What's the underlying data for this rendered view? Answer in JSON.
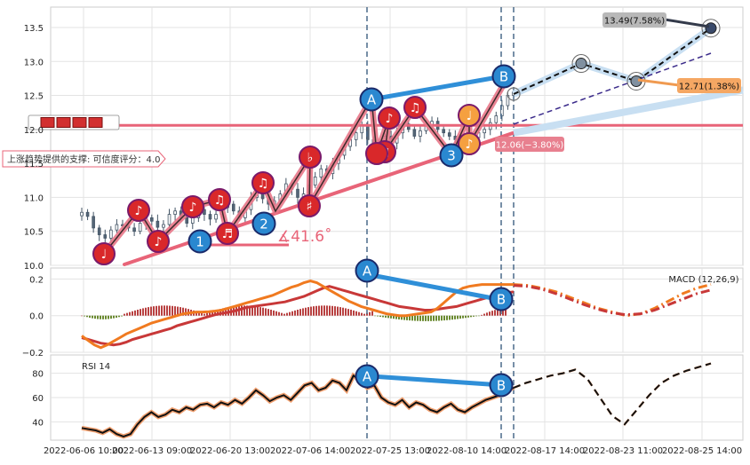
{
  "chart_data": [
    {
      "type": "candlestick",
      "panel": "price",
      "ylim": [
        10.0,
        13.8
      ],
      "yticks": [
        "10.0",
        "10.5",
        "11.0",
        "11.5",
        "12.0",
        "12.5",
        "13.0",
        "13.5"
      ],
      "xtick_labels": [
        "2022-06-06 10:00",
        "2022-06-13 09:00",
        "2022-06-20 13:00",
        "2022-07-06 14:00",
        "2022-07-25 13:00",
        "2022-08-10 14:00",
        "2022-08-17 14:00",
        "2022-08-23 11:00",
        "2022-08-25 14:00"
      ],
      "close_series": [
        10.78,
        10.72,
        10.55,
        10.45,
        10.4,
        10.52,
        10.6,
        10.58,
        10.55,
        10.5,
        10.62,
        10.7,
        10.65,
        10.56,
        10.6,
        10.75,
        10.8,
        10.7,
        10.62,
        10.7,
        10.82,
        10.75,
        10.68,
        10.75,
        10.85,
        10.9,
        10.8,
        10.7,
        10.82,
        11.0,
        11.08,
        10.98,
        10.9,
        10.95,
        11.05,
        11.2,
        11.12,
        11.0,
        11.05,
        11.18,
        11.3,
        11.42,
        11.35,
        11.5,
        11.62,
        11.75,
        11.85,
        11.95,
        12.05,
        11.85,
        11.65,
        11.75,
        11.9,
        11.8,
        11.95,
        12.08,
        12.0,
        11.9,
        11.98,
        12.05,
        12.12,
        12.0,
        11.95,
        11.9,
        11.85,
        11.9,
        11.82,
        11.88,
        11.95,
        12.0,
        12.1,
        12.2,
        12.35,
        12.5,
        12.55
      ],
      "support_level": 12.06,
      "support_label": "12.06(−3.80%)",
      "trend_annotation": "上涨趋势提供的支撑: 可信度评分：4.0",
      "angle_label": "∡41.6˚",
      "projection_labels": [
        "13.49(7.58%)",
        "12.71(1.38%)"
      ],
      "pattern_labels": [
        "A",
        "B",
        "1",
        "2",
        "3"
      ],
      "pattern_points": [
        {
          "label": "A",
          "x": "2022-07-21",
          "y": 12.25
        },
        {
          "label": "B",
          "x": "2022-08-15",
          "y": 12.6
        },
        {
          "label": "1",
          "x": "2022-06-17",
          "y": 10.3
        },
        {
          "label": "2",
          "x": "2022-06-28",
          "y": 10.47
        },
        {
          "label": "3",
          "x": "2022-08-11",
          "y": 11.32
        }
      ],
      "projection_points": [
        {
          "y": 12.97
        },
        {
          "y": 12.71
        },
        {
          "y": 13.49
        }
      ]
    },
    {
      "type": "line",
      "panel": "macd",
      "title": "MACD (12,26,9)",
      "ylim": [
        -0.2,
        0.26
      ],
      "yticks": [
        "0.2",
        "0.0",
        "−0.2"
      ],
      "series": [
        {
          "values": [
            -0.12,
            -0.13,
            -0.14,
            -0.15,
            -0.155,
            -0.16,
            -0.155,
            -0.145,
            -0.13,
            -0.12,
            -0.11,
            -0.1,
            -0.09,
            -0.08,
            -0.07,
            -0.055,
            -0.045,
            -0.035,
            -0.025,
            -0.015,
            -0.005,
            0.005,
            0.012,
            0.018,
            0.025,
            0.035,
            0.045,
            0.05,
            0.055,
            0.06,
            0.065,
            0.07,
            0.075,
            0.085,
            0.095,
            0.105,
            0.12,
            0.135,
            0.15,
            0.16,
            0.15,
            0.14,
            0.13,
            0.12,
            0.11,
            0.1,
            0.09,
            0.08,
            0.07,
            0.06,
            0.05,
            0.045,
            0.04,
            0.035,
            0.03,
            0.03,
            0.035,
            0.04,
            0.045,
            0.05,
            0.06,
            0.07,
            0.08,
            0.09,
            0.1,
            0.11,
            0.12,
            0.125,
            0.13
          ]
        },
        {
          "values": [
            -0.11,
            -0.135,
            -0.16,
            -0.175,
            -0.16,
            -0.14,
            -0.12,
            -0.1,
            -0.085,
            -0.07,
            -0.055,
            -0.04,
            -0.03,
            -0.02,
            -0.01,
            0.0,
            0.01,
            0.015,
            0.02,
            0.02,
            0.022,
            0.025,
            0.03,
            0.04,
            0.05,
            0.06,
            0.07,
            0.08,
            0.09,
            0.1,
            0.11,
            0.125,
            0.14,
            0.155,
            0.165,
            0.18,
            0.19,
            0.18,
            0.16,
            0.14,
            0.12,
            0.1,
            0.08,
            0.065,
            0.05,
            0.04,
            0.03,
            0.02,
            0.01,
            0.005,
            0.0,
            0.0,
            0.005,
            0.01,
            0.015,
            0.02,
            0.04,
            0.07,
            0.1,
            0.13,
            0.15,
            0.16,
            0.165,
            0.17,
            0.17,
            0.17,
            0.17,
            0.17,
            0.17
          ]
        },
        {
          "values": [
            0.17,
            0.165,
            0.15,
            0.13,
            0.1,
            0.07,
            0.04,
            0.02,
            0.0,
            0.01,
            0.04,
            0.08,
            0.12,
            0.15,
            0.17
          ]
        },
        {
          "values": [
            0.165,
            0.16,
            0.145,
            0.12,
            0.09,
            0.06,
            0.035,
            0.015,
            0.005,
            0.01,
            0.03,
            0.06,
            0.09,
            0.12,
            0.14
          ]
        }
      ],
      "pattern_labels": [
        "A",
        "B"
      ]
    },
    {
      "type": "line",
      "panel": "rsi",
      "title": "RSI 14",
      "ylim": [
        25,
        95
      ],
      "yticks": [
        "80",
        "60",
        "40"
      ],
      "series": [
        {
          "values": [
            35,
            34,
            33,
            31,
            34,
            30,
            28,
            30,
            38,
            44,
            48,
            44,
            46,
            50,
            48,
            52,
            50,
            54,
            55,
            52,
            56,
            54,
            58,
            55,
            60,
            66,
            62,
            57,
            60,
            62,
            58,
            64,
            70,
            72,
            66,
            68,
            74,
            72,
            66,
            78,
            74,
            68,
            70,
            60,
            56,
            54,
            58,
            52,
            56,
            54,
            50,
            48,
            52,
            55,
            50,
            48,
            52,
            55,
            58,
            60,
            62,
            66,
            68
          ]
        },
        {
          "values": [
            68,
            72,
            75,
            78,
            80,
            83,
            75,
            60,
            45,
            38,
            50,
            62,
            72,
            78,
            82,
            85,
            88
          ]
        }
      ],
      "pattern_labels": [
        "A",
        "B"
      ]
    }
  ]
}
